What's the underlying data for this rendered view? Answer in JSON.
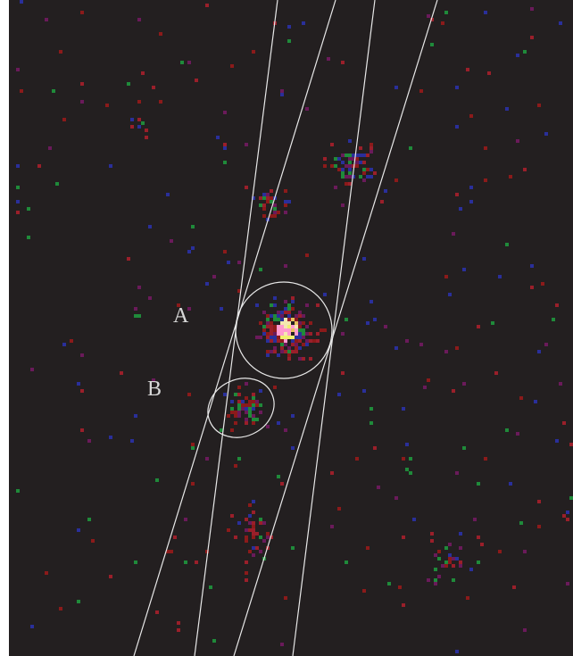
{
  "labels": [
    "A",
    "B"
  ]
}
